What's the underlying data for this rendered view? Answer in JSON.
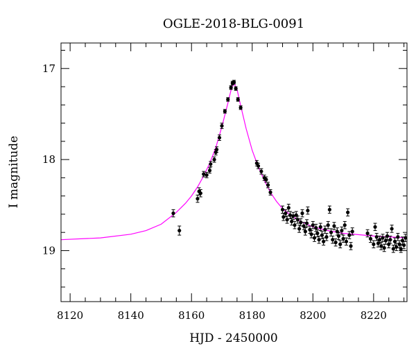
{
  "chart_data": {
    "type": "scatter",
    "title": "OGLE-2018-BLG-0091",
    "xlabel": "HJD - 2450000",
    "ylabel": "I magnitude",
    "xlim": [
      8117,
      8231
    ],
    "ylim": [
      19.56,
      16.72
    ],
    "y_inverted": true,
    "grid": false,
    "x_ticks": [
      8120,
      8140,
      8160,
      8180,
      8200,
      8220
    ],
    "y_ticks": [
      17,
      18,
      19
    ],
    "colors": {
      "data": "#000000",
      "model": "#ff00ff"
    },
    "series": [
      {
        "kind": "points_with_errorbars",
        "points": [
          [
            8154.0,
            18.59,
            0.04
          ],
          [
            8156.0,
            18.78,
            0.05
          ],
          [
            8162.0,
            18.43,
            0.04
          ],
          [
            8162.5,
            18.35,
            0.04
          ],
          [
            8163.0,
            18.37,
            0.04
          ],
          [
            8164.0,
            18.16,
            0.03
          ],
          [
            8165.0,
            18.17,
            0.03
          ],
          [
            8166.0,
            18.12,
            0.03
          ],
          [
            8166.3,
            18.05,
            0.03
          ],
          [
            8167.5,
            18.0,
            0.03
          ],
          [
            8168.0,
            17.92,
            0.03
          ],
          [
            8168.3,
            17.89,
            0.03
          ],
          [
            8169.2,
            17.76,
            0.03
          ],
          [
            8170.0,
            17.63,
            0.03
          ],
          [
            8171.0,
            17.47,
            0.02
          ],
          [
            8172.0,
            17.34,
            0.02
          ],
          [
            8173.0,
            17.21,
            0.02
          ],
          [
            8173.5,
            17.16,
            0.02
          ],
          [
            8174.0,
            17.15,
            0.02
          ],
          [
            8174.6,
            17.22,
            0.02
          ],
          [
            8175.3,
            17.34,
            0.02
          ],
          [
            8176.2,
            17.43,
            0.02
          ],
          [
            8181.5,
            18.04,
            0.03
          ],
          [
            8182.0,
            18.07,
            0.03
          ],
          [
            8183.0,
            18.13,
            0.03
          ],
          [
            8184.0,
            18.2,
            0.03
          ],
          [
            8184.6,
            18.22,
            0.03
          ],
          [
            8185.2,
            18.28,
            0.03
          ],
          [
            8186.0,
            18.36,
            0.03
          ],
          [
            8190.0,
            18.55,
            0.04
          ],
          [
            8190.3,
            18.63,
            0.04
          ],
          [
            8191.0,
            18.59,
            0.04
          ],
          [
            8191.5,
            18.66,
            0.04
          ],
          [
            8192.0,
            18.53,
            0.04
          ],
          [
            8192.5,
            18.61,
            0.04
          ],
          [
            8193.0,
            18.68,
            0.04
          ],
          [
            8193.5,
            18.62,
            0.04
          ],
          [
            8194.0,
            18.72,
            0.04
          ],
          [
            8194.5,
            18.61,
            0.04
          ],
          [
            8195.0,
            18.66,
            0.04
          ],
          [
            8195.5,
            18.76,
            0.04
          ],
          [
            8196.0,
            18.69,
            0.04
          ],
          [
            8196.5,
            18.59,
            0.04
          ],
          [
            8197.0,
            18.73,
            0.04
          ],
          [
            8197.5,
            18.79,
            0.04
          ],
          [
            8198.0,
            18.7,
            0.04
          ],
          [
            8198.3,
            18.56,
            0.04
          ],
          [
            8199.0,
            18.77,
            0.04
          ],
          [
            8199.5,
            18.82,
            0.04
          ],
          [
            8200.0,
            18.72,
            0.04
          ],
          [
            8200.5,
            18.86,
            0.04
          ],
          [
            8201.0,
            18.75,
            0.04
          ],
          [
            8201.5,
            18.81,
            0.04
          ],
          [
            8202.0,
            18.88,
            0.04
          ],
          [
            8202.5,
            18.74,
            0.04
          ],
          [
            8203.0,
            18.83,
            0.04
          ],
          [
            8203.5,
            18.9,
            0.04
          ],
          [
            8204.0,
            18.77,
            0.04
          ],
          [
            8204.5,
            18.85,
            0.04
          ],
          [
            8205.0,
            18.72,
            0.04
          ],
          [
            8205.5,
            18.55,
            0.04
          ],
          [
            8206.0,
            18.8,
            0.04
          ],
          [
            8206.5,
            18.88,
            0.04
          ],
          [
            8207.0,
            18.73,
            0.04
          ],
          [
            8207.5,
            18.91,
            0.04
          ],
          [
            8208.0,
            18.79,
            0.04
          ],
          [
            8208.5,
            18.84,
            0.04
          ],
          [
            8209.0,
            18.93,
            0.04
          ],
          [
            8209.5,
            18.78,
            0.04
          ],
          [
            8210.0,
            18.87,
            0.04
          ],
          [
            8210.5,
            18.72,
            0.04
          ],
          [
            8211.0,
            18.9,
            0.04
          ],
          [
            8211.5,
            18.58,
            0.04
          ],
          [
            8212.0,
            18.83,
            0.04
          ],
          [
            8212.5,
            18.95,
            0.04
          ],
          [
            8213.0,
            18.79,
            0.04
          ],
          [
            8218.0,
            18.81,
            0.04
          ],
          [
            8219.0,
            18.87,
            0.04
          ],
          [
            8220.0,
            18.93,
            0.04
          ],
          [
            8220.5,
            18.74,
            0.04
          ],
          [
            8221.0,
            18.85,
            0.04
          ],
          [
            8221.5,
            18.92,
            0.04
          ],
          [
            8222.0,
            18.88,
            0.04
          ],
          [
            8222.5,
            18.95,
            0.04
          ],
          [
            8223.0,
            18.86,
            0.04
          ],
          [
            8223.5,
            18.97,
            0.04
          ],
          [
            8224.0,
            18.89,
            0.04
          ],
          [
            8224.5,
            18.84,
            0.04
          ],
          [
            8225.0,
            18.93,
            0.04
          ],
          [
            8225.5,
            18.88,
            0.04
          ],
          [
            8226.0,
            18.76,
            0.04
          ],
          [
            8226.5,
            18.98,
            0.04
          ],
          [
            8227.0,
            18.9,
            0.04
          ],
          [
            8227.5,
            18.96,
            0.04
          ],
          [
            8228.0,
            18.85,
            0.04
          ],
          [
            8228.5,
            18.93,
            0.04
          ],
          [
            8229.0,
            18.98,
            0.04
          ],
          [
            8229.5,
            18.89,
            0.04
          ],
          [
            8230.0,
            18.94,
            0.04
          ],
          [
            8230.5,
            18.86,
            0.04
          ]
        ]
      },
      {
        "kind": "model_curve",
        "points": [
          [
            8117,
            18.88
          ],
          [
            8130,
            18.86
          ],
          [
            8140,
            18.82
          ],
          [
            8145,
            18.78
          ],
          [
            8150,
            18.71
          ],
          [
            8155,
            18.58
          ],
          [
            8158,
            18.48
          ],
          [
            8160,
            18.4
          ],
          [
            8162,
            18.3
          ],
          [
            8164,
            18.18
          ],
          [
            8166,
            18.04
          ],
          [
            8168,
            17.87
          ],
          [
            8170,
            17.64
          ],
          [
            8172,
            17.38
          ],
          [
            8173,
            17.24
          ],
          [
            8174,
            17.16
          ],
          [
            8175,
            17.23
          ],
          [
            8176,
            17.38
          ],
          [
            8178,
            17.66
          ],
          [
            8180,
            17.9
          ],
          [
            8182,
            18.08
          ],
          [
            8184,
            18.23
          ],
          [
            8186,
            18.36
          ],
          [
            8188,
            18.46
          ],
          [
            8190,
            18.54
          ],
          [
            8193,
            18.62
          ],
          [
            8196,
            18.68
          ],
          [
            8200,
            18.74
          ],
          [
            8205,
            18.78
          ],
          [
            8210,
            18.81
          ],
          [
            8220,
            18.84
          ],
          [
            8231,
            18.86
          ]
        ]
      }
    ]
  }
}
